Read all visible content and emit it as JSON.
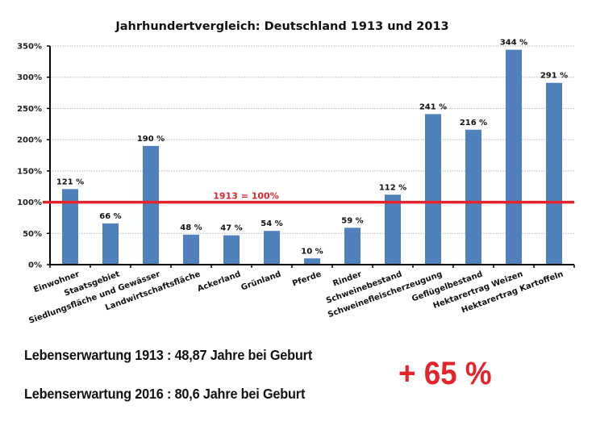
{
  "chart_data": {
    "type": "bar",
    "title": "Jahrhundertvergleich: Deutschland 1913 und 2013",
    "xlabel": "",
    "ylabel": "",
    "ylim": [
      0,
      350
    ],
    "yticks": [
      0,
      50,
      100,
      150,
      200,
      250,
      300,
      350
    ],
    "ytick_labels": [
      "0%",
      "50%",
      "100%",
      "150%",
      "200%",
      "250%",
      "300%",
      "350%"
    ],
    "grid": true,
    "categories": [
      "Einwohner",
      "Staatsgebiet",
      "Siedlungsfläche und Gewässer",
      "Landwirtschaftsfläche",
      "Ackerland",
      "Grünland",
      "Pferde",
      "Rinder",
      "Schweinebestand",
      "Schweinefleischerzeugung",
      "Geflügelbestand",
      "Hektarertrag Weizen",
      "Hektarertrag Kartoffeln"
    ],
    "values": [
      121,
      66,
      190,
      48,
      47,
      54,
      10,
      59,
      112,
      241,
      216,
      344,
      291
    ],
    "data_labels": [
      "121 %",
      "66 %",
      "190 %",
      "48 %",
      "47 %",
      "54 %",
      "10 %",
      "59 %",
      "112 %",
      "241 %",
      "216 %",
      "344 %",
      "291 %"
    ],
    "bar_color": "#4F81BD",
    "reference_line": {
      "value": 100,
      "label": "1913 = 100%",
      "color": "#E3242B"
    }
  },
  "annotations": {
    "life_expectancy_1913": "Lebenserwartung 1913 : 48,87 Jahre bei Geburt",
    "life_expectancy_2016": "Lebenserwartung 2016 : 80,6 Jahre bei Geburt",
    "increase": "+ 65 %",
    "increase_color": "#E3242B"
  }
}
